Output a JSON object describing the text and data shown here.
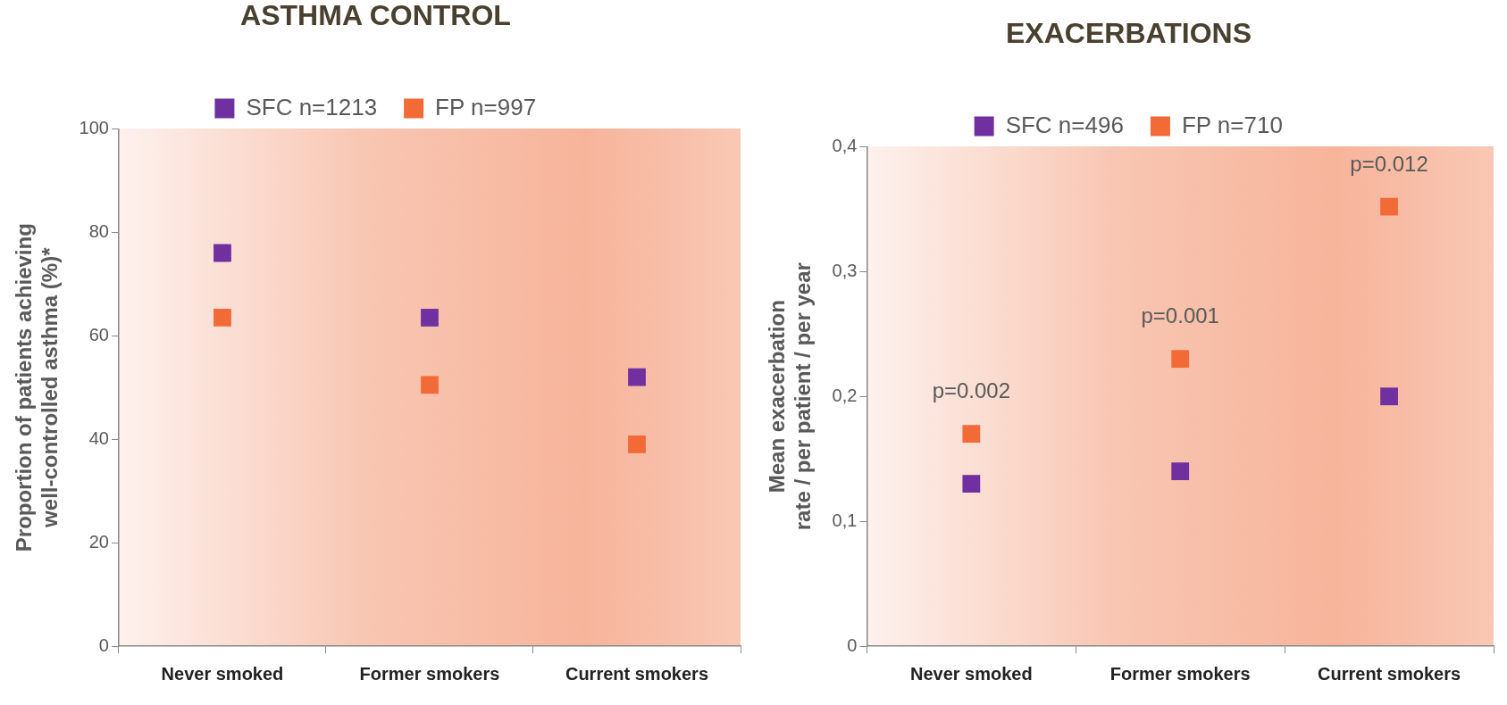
{
  "chart_data": [
    {
      "type": "scatter",
      "title": "ASTHMA CONTROL",
      "ylabel": "Proportion of patients achieving well-controlled asthma (%)*",
      "categories": [
        "Never smoked",
        "Former smokers",
        "Current smokers"
      ],
      "series": [
        {
          "name": "SFC n=1213",
          "color": "#7030a0",
          "values": [
            76,
            63.5,
            52
          ]
        },
        {
          "name": "FP n=997",
          "color": "#f26a36",
          "values": [
            63.5,
            50.5,
            39
          ]
        }
      ],
      "ylim": [
        0,
        100
      ],
      "yticks": [
        0,
        20,
        40,
        60,
        80,
        100
      ],
      "grid": false,
      "legend": "top",
      "marker": "square"
    },
    {
      "type": "scatter",
      "title": "EXACERBATIONS",
      "ylabel": "Mean exacerbation rate / per patient / per year",
      "categories": [
        "Never smoked",
        "Former smokers",
        "Current smokers"
      ],
      "series": [
        {
          "name": "SFC n=496",
          "color": "#7030a0",
          "values": [
            0.13,
            0.14,
            0.2
          ]
        },
        {
          "name": "FP n=710",
          "color": "#f26a36",
          "values": [
            0.17,
            0.23,
            0.352
          ]
        }
      ],
      "ylim": [
        0,
        0.4
      ],
      "yticks": [
        {
          "value": 0,
          "label": "0"
        },
        {
          "value": 0.1,
          "label": "0,1"
        },
        {
          "value": 0.2,
          "label": "0,2"
        },
        {
          "value": 0.3,
          "label": "0,3"
        },
        {
          "value": 0.4,
          "label": "0,4"
        }
      ],
      "grid": false,
      "legend": "top",
      "marker": "square",
      "annotations": [
        {
          "text": "p=0.002",
          "x": "Never smoked",
          "y": 0.17
        },
        {
          "text": "p=0.001",
          "x": "Former smokers",
          "y": 0.23
        },
        {
          "text": "p=0.012",
          "x": "Current smokers",
          "y": 0.352
        }
      ]
    }
  ]
}
